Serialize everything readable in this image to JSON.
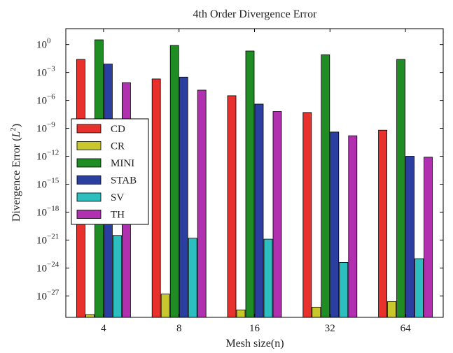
{
  "chart_data": {
    "type": "bar",
    "title": "4th Order Divergence Error",
    "xlabel": "Mesh size(n)",
    "ylabel_main": "Divergence Error (",
    "ylabel_italic": "L",
    "ylabel_sup": "2",
    "ylabel_close": ")",
    "yscale": "log",
    "ylim_exp": [
      -29.3,
      1.7
    ],
    "y_ticks": [
      {
        "exp": 0,
        "label": "10",
        "sup": "0"
      },
      {
        "exp": -3,
        "label": "10",
        "sup": "−3"
      },
      {
        "exp": -6,
        "label": "10",
        "sup": "−6"
      },
      {
        "exp": -9,
        "label": "10",
        "sup": "−9"
      },
      {
        "exp": -12,
        "label": "10",
        "sup": "−12"
      },
      {
        "exp": -15,
        "label": "10",
        "sup": "−15"
      },
      {
        "exp": -18,
        "label": "10",
        "sup": "−18"
      },
      {
        "exp": -21,
        "label": "10",
        "sup": "−21"
      },
      {
        "exp": -24,
        "label": "10",
        "sup": "−24"
      },
      {
        "exp": -27,
        "label": "10",
        "sup": "−27"
      }
    ],
    "categories": [
      "4",
      "8",
      "16",
      "32",
      "64"
    ],
    "legend_position": "center-left",
    "series": [
      {
        "name": "CD",
        "color": "#e8312c",
        "values_exp": [
          -1.6,
          -3.7,
          -5.5,
          -7.3,
          -9.2
        ]
      },
      {
        "name": "CR",
        "color": "#c9c72e",
        "values_exp": [
          -29.0,
          -26.8,
          -28.5,
          -28.2,
          -27.6
        ]
      },
      {
        "name": "MINI",
        "color": "#1f8c24",
        "values_exp": [
          0.5,
          -0.1,
          -0.7,
          -1.1,
          -1.6
        ]
      },
      {
        "name": "STAB",
        "color": "#2a3fa0",
        "values_exp": [
          -2.1,
          -3.5,
          -6.4,
          -9.4,
          -12.0
        ]
      },
      {
        "name": "SV",
        "color": "#2dbfbf",
        "values_exp": [
          -20.5,
          -20.8,
          -20.9,
          -23.4,
          -23.0
        ]
      },
      {
        "name": "TH",
        "color": "#b030b0",
        "values_exp": [
          -4.1,
          -4.9,
          -7.2,
          -9.8,
          -12.1
        ]
      }
    ]
  }
}
